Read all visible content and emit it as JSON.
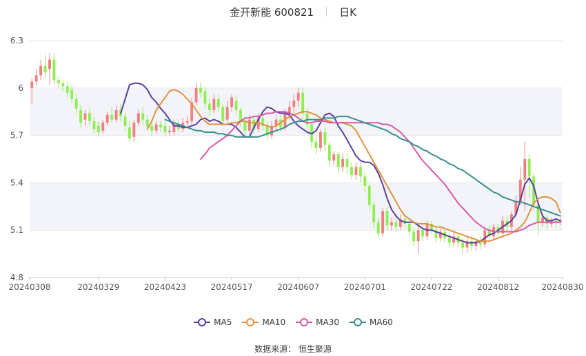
{
  "title": {
    "stock": "金开新能 600821",
    "period": "日K"
  },
  "source": "数据来源： 恒生聚源",
  "colors": {
    "up": "#f08080",
    "down": "#90ee50",
    "ma5": "#5b3f9e",
    "ma10": "#e0913e",
    "ma30": "#d35aa8",
    "ma60": "#3a8e8e",
    "band": "#f3f4fa",
    "grid": "#e6e6e6",
    "axis": "#555555"
  },
  "chart_data": {
    "type": "candlestick",
    "ylim": [
      4.8,
      6.3
    ],
    "yticks": [
      "4.8",
      "5.1",
      "5.4",
      "5.7",
      "6",
      "6.3"
    ],
    "xticks": [
      "20240308",
      "20240329",
      "20240423",
      "20240517",
      "20240607",
      "20240701",
      "20240722",
      "20240812",
      "20240830"
    ],
    "xtick_index": [
      0,
      15,
      30,
      45,
      60,
      75,
      90,
      105,
      119
    ],
    "legend": [
      "MA5",
      "MA10",
      "MA30",
      "MA60"
    ],
    "series": [
      {
        "name": "MA5",
        "values": [
          5.84,
          5.93,
          6.02,
          6.03,
          6.03,
          6.02,
          5.99,
          5.94,
          5.91,
          5.87,
          5.84,
          5.8,
          5.76,
          5.76,
          5.75,
          5.75,
          5.76,
          5.77,
          5.8,
          5.81,
          5.79,
          5.8,
          5.79,
          5.77,
          5.77,
          5.77,
          5.75,
          5.72,
          5.69,
          5.69,
          5.75,
          5.8,
          5.85,
          5.88,
          5.87,
          5.85,
          5.84,
          5.84,
          5.83,
          5.79,
          5.76,
          5.74,
          5.72,
          5.71,
          5.73,
          5.78,
          5.83,
          5.84,
          5.82,
          5.76,
          5.72,
          5.67,
          5.62,
          5.57,
          5.54,
          5.53,
          5.53,
          5.51,
          5.46,
          5.39,
          5.3,
          5.23,
          5.19,
          5.16,
          5.15,
          5.15,
          5.15,
          5.13,
          5.11,
          5.1,
          5.1,
          5.09,
          5.08,
          5.07,
          5.06,
          5.05,
          5.04,
          5.03,
          5.02,
          5.02,
          5.02,
          5.03,
          5.05,
          5.07,
          5.08,
          5.1,
          5.12,
          5.14,
          5.16,
          5.2,
          5.29,
          5.39,
          5.43,
          5.38,
          5.27,
          5.19,
          5.16,
          5.16,
          5.17,
          5.16
        ]
      },
      {
        "name": "MA10",
        "values": [
          5.74,
          5.79,
          5.86,
          5.9,
          5.94,
          5.98,
          5.99,
          5.98,
          5.96,
          5.93,
          5.9,
          5.86,
          5.82,
          5.79,
          5.77,
          5.77,
          5.77,
          5.77,
          5.77,
          5.78,
          5.78,
          5.79,
          5.79,
          5.78,
          5.78,
          5.78,
          5.77,
          5.76,
          5.75,
          5.76,
          5.78,
          5.8,
          5.82,
          5.83,
          5.84,
          5.85,
          5.85,
          5.84,
          5.83,
          5.81,
          5.8,
          5.79,
          5.78,
          5.78,
          5.78,
          5.77,
          5.76,
          5.73,
          5.68,
          5.63,
          5.58,
          5.53,
          5.48,
          5.43,
          5.38,
          5.33,
          5.28,
          5.23,
          5.19,
          5.17,
          5.15,
          5.14,
          5.14,
          5.14,
          5.13,
          5.12,
          5.12,
          5.11,
          5.1,
          5.09,
          5.08,
          5.07,
          5.06,
          5.05,
          5.04,
          5.03,
          5.03,
          5.03,
          5.04,
          5.05,
          5.06,
          5.07,
          5.08,
          5.1,
          5.12,
          5.15,
          5.21,
          5.27,
          5.3,
          5.31,
          5.31,
          5.3,
          5.28,
          5.21
        ]
      },
      {
        "name": "MA30",
        "values": [
          5.55,
          5.58,
          5.62,
          5.64,
          5.66,
          5.68,
          5.7,
          5.73,
          5.76,
          5.79,
          5.81,
          5.81,
          5.82,
          5.82,
          5.83,
          5.84,
          5.84,
          5.85,
          5.85,
          5.85,
          5.84,
          5.83,
          5.81,
          5.79,
          5.78,
          5.78,
          5.79,
          5.79,
          5.79,
          5.78,
          5.78,
          5.78,
          5.78,
          5.78,
          5.78,
          5.78,
          5.78,
          5.78,
          5.78,
          5.78,
          5.78,
          5.77,
          5.77,
          5.76,
          5.74,
          5.72,
          5.69,
          5.66,
          5.62,
          5.58,
          5.54,
          5.51,
          5.48,
          5.45,
          5.42,
          5.39,
          5.35,
          5.31,
          5.27,
          5.24,
          5.21,
          5.18,
          5.15,
          5.13,
          5.11,
          5.1,
          5.09,
          5.09,
          5.09,
          5.09,
          5.09,
          5.09,
          5.1,
          5.11,
          5.13,
          5.14,
          5.15,
          5.15,
          5.15,
          5.15,
          5.15,
          5.15
        ]
      },
      {
        "name": "MA60",
        "values": [
          5.8,
          5.79,
          5.78,
          5.77,
          5.76,
          5.75,
          5.74,
          5.73,
          5.73,
          5.72,
          5.72,
          5.72,
          5.71,
          5.71,
          5.7,
          5.7,
          5.69,
          5.69,
          5.69,
          5.69,
          5.69,
          5.69,
          5.7,
          5.71,
          5.72,
          5.73,
          5.74,
          5.75,
          5.77,
          5.78,
          5.79,
          5.79,
          5.8,
          5.8,
          5.8,
          5.8,
          5.81,
          5.81,
          5.81,
          5.82,
          5.82,
          5.82,
          5.81,
          5.8,
          5.79,
          5.78,
          5.77,
          5.76,
          5.75,
          5.74,
          5.73,
          5.71,
          5.7,
          5.68,
          5.67,
          5.66,
          5.64,
          5.63,
          5.61,
          5.6,
          5.58,
          5.57,
          5.55,
          5.54,
          5.52,
          5.51,
          5.49,
          5.48,
          5.46,
          5.44,
          5.42,
          5.4,
          5.38,
          5.36,
          5.34,
          5.33,
          5.31,
          5.3,
          5.29,
          5.28,
          5.28,
          5.27,
          5.26,
          5.25,
          5.24,
          5.23,
          5.22,
          5.21,
          5.2,
          5.19
        ]
      }
    ],
    "candles": [
      [
        6.0,
        6.04,
        5.9,
        6.06
      ],
      [
        6.04,
        6.08,
        6.02,
        6.12
      ],
      [
        6.08,
        6.14,
        6.05,
        6.18
      ],
      [
        6.14,
        6.1,
        6.06,
        6.21
      ],
      [
        6.12,
        6.18,
        6.02,
        6.22
      ],
      [
        6.18,
        6.05,
        6.02,
        6.22
      ],
      [
        6.05,
        6.03,
        6.0,
        6.07
      ],
      [
        6.03,
        6.01,
        5.98,
        6.05
      ],
      [
        6.01,
        5.97,
        5.94,
        6.04
      ],
      [
        5.99,
        5.93,
        5.9,
        6.02
      ],
      [
        5.93,
        5.87,
        5.84,
        5.96
      ],
      [
        5.86,
        5.78,
        5.75,
        5.89
      ],
      [
        5.8,
        5.84,
        5.76,
        5.86
      ],
      [
        5.84,
        5.79,
        5.76,
        5.87
      ],
      [
        5.79,
        5.74,
        5.71,
        5.82
      ],
      [
        5.76,
        5.72,
        5.69,
        5.79
      ],
      [
        5.73,
        5.78,
        5.71,
        5.8
      ],
      [
        5.78,
        5.83,
        5.76,
        5.85
      ],
      [
        5.83,
        5.8,
        5.78,
        5.88
      ],
      [
        5.8,
        5.86,
        5.78,
        5.89
      ],
      [
        5.86,
        5.82,
        5.79,
        5.9
      ],
      [
        5.82,
        5.76,
        5.72,
        5.84
      ],
      [
        5.75,
        5.68,
        5.66,
        5.79
      ],
      [
        5.69,
        5.78,
        5.66,
        5.8
      ],
      [
        5.78,
        5.84,
        5.76,
        5.86
      ],
      [
        5.84,
        5.8,
        5.77,
        5.88
      ],
      [
        5.8,
        5.76,
        5.73,
        5.83
      ],
      [
        5.76,
        5.73,
        5.7,
        5.8
      ],
      [
        5.73,
        5.77,
        5.71,
        5.79
      ],
      [
        5.77,
        5.75,
        5.72,
        5.79
      ],
      [
        5.76,
        5.72,
        5.69,
        5.79
      ],
      [
        5.72,
        5.73,
        5.7,
        5.76
      ],
      [
        5.72,
        5.77,
        5.7,
        5.8
      ],
      [
        5.77,
        5.74,
        5.72,
        5.8
      ],
      [
        5.74,
        5.78,
        5.72,
        5.81
      ],
      [
        5.78,
        5.79,
        5.75,
        5.82
      ],
      [
        5.79,
        5.91,
        5.77,
        5.94
      ],
      [
        5.91,
        6.0,
        5.89,
        6.03
      ],
      [
        6.0,
        5.97,
        5.94,
        6.03
      ],
      [
        5.98,
        5.9,
        5.86,
        6.0
      ],
      [
        5.9,
        5.86,
        5.82,
        5.93
      ],
      [
        5.86,
        5.93,
        5.84,
        5.96
      ],
      [
        5.93,
        5.88,
        5.85,
        5.96
      ],
      [
        5.88,
        5.79,
        5.76,
        5.9
      ],
      [
        5.8,
        5.88,
        5.78,
        5.92
      ],
      [
        5.88,
        5.94,
        5.85,
        5.96
      ],
      [
        5.92,
        5.86,
        5.83,
        5.95
      ],
      [
        5.86,
        5.79,
        5.75,
        5.88
      ],
      [
        5.79,
        5.73,
        5.7,
        5.82
      ],
      [
        5.73,
        5.8,
        5.71,
        5.83
      ],
      [
        5.8,
        5.74,
        5.71,
        5.83
      ],
      [
        5.74,
        5.81,
        5.72,
        5.84
      ],
      [
        5.81,
        5.76,
        5.73,
        5.84
      ],
      [
        5.76,
        5.7,
        5.67,
        5.79
      ],
      [
        5.7,
        5.76,
        5.68,
        5.79
      ],
      [
        5.76,
        5.8,
        5.73,
        5.83
      ],
      [
        5.8,
        5.75,
        5.72,
        5.83
      ],
      [
        5.75,
        5.84,
        5.73,
        5.87
      ],
      [
        5.84,
        5.88,
        5.8,
        5.92
      ],
      [
        5.88,
        5.92,
        5.84,
        5.96
      ],
      [
        5.92,
        5.97,
        5.88,
        6.0
      ],
      [
        5.97,
        5.84,
        5.8,
        6.0
      ],
      [
        5.84,
        5.77,
        5.74,
        5.87
      ],
      [
        5.77,
        5.66,
        5.62,
        5.79
      ],
      [
        5.66,
        5.62,
        5.58,
        5.7
      ],
      [
        5.62,
        5.72,
        5.6,
        5.74
      ],
      [
        5.72,
        5.64,
        5.6,
        5.75
      ],
      [
        5.64,
        5.54,
        5.5,
        5.66
      ],
      [
        5.54,
        5.58,
        5.51,
        5.6
      ],
      [
        5.58,
        5.5,
        5.46,
        5.6
      ],
      [
        5.5,
        5.55,
        5.47,
        5.58
      ],
      [
        5.55,
        5.5,
        5.46,
        5.58
      ],
      [
        5.5,
        5.45,
        5.42,
        5.53
      ],
      [
        5.45,
        5.5,
        5.42,
        5.53
      ],
      [
        5.5,
        5.44,
        5.4,
        5.53
      ],
      [
        5.44,
        5.38,
        5.34,
        5.47
      ],
      [
        5.38,
        5.26,
        5.22,
        5.4
      ],
      [
        5.26,
        5.15,
        5.11,
        5.28
      ],
      [
        5.15,
        5.08,
        5.05,
        5.18
      ],
      [
        5.08,
        5.22,
        5.06,
        5.24
      ],
      [
        5.22,
        5.13,
        5.1,
        5.25
      ],
      [
        5.13,
        5.15,
        5.1,
        5.18
      ],
      [
        5.15,
        5.12,
        5.09,
        5.18
      ],
      [
        5.12,
        5.17,
        5.1,
        5.2
      ],
      [
        5.17,
        5.14,
        5.11,
        5.2
      ],
      [
        5.14,
        5.09,
        5.06,
        5.17
      ],
      [
        5.09,
        5.03,
        5.0,
        5.12
      ],
      [
        5.03,
        5.1,
        4.95,
        5.13
      ],
      [
        5.1,
        5.06,
        5.03,
        5.13
      ],
      [
        5.06,
        5.14,
        5.04,
        5.16
      ],
      [
        5.14,
        5.1,
        5.07,
        5.16
      ],
      [
        5.1,
        5.05,
        5.02,
        5.13
      ],
      [
        5.05,
        5.09,
        5.03,
        5.11
      ],
      [
        5.09,
        5.05,
        5.02,
        5.11
      ],
      [
        5.05,
        5.02,
        4.99,
        5.08
      ],
      [
        5.02,
        5.06,
        5.0,
        5.09
      ],
      [
        5.06,
        5.02,
        4.99,
        5.08
      ],
      [
        5.02,
        4.99,
        4.95,
        5.05
      ],
      [
        4.99,
        5.03,
        4.96,
        5.06
      ],
      [
        5.03,
        5.0,
        4.97,
        5.06
      ],
      [
        5.0,
        5.03,
        4.97,
        5.05
      ],
      [
        5.03,
        5.01,
        4.98,
        5.06
      ],
      [
        5.01,
        5.1,
        4.99,
        5.12
      ],
      [
        5.1,
        5.06,
        5.03,
        5.13
      ],
      [
        5.06,
        5.12,
        5.04,
        5.14
      ],
      [
        5.12,
        5.08,
        5.05,
        5.14
      ],
      [
        5.08,
        5.16,
        5.06,
        5.19
      ],
      [
        5.16,
        5.12,
        5.09,
        5.19
      ],
      [
        5.12,
        5.2,
        5.1,
        5.22
      ],
      [
        5.2,
        5.28,
        5.18,
        5.32
      ],
      [
        5.28,
        5.42,
        5.26,
        5.5
      ],
      [
        5.42,
        5.55,
        5.22,
        5.66
      ],
      [
        5.55,
        5.44,
        5.3,
        5.58
      ],
      [
        5.44,
        5.26,
        5.22,
        5.46
      ],
      [
        5.26,
        5.15,
        5.07,
        5.28
      ],
      [
        5.15,
        5.18,
        5.12,
        5.2
      ],
      [
        5.18,
        5.14,
        5.11,
        5.2
      ],
      [
        5.14,
        5.16,
        5.12,
        5.18
      ],
      [
        5.16,
        5.15,
        5.12,
        5.18
      ],
      [
        5.15,
        5.16,
        5.13,
        5.18
      ]
    ]
  }
}
